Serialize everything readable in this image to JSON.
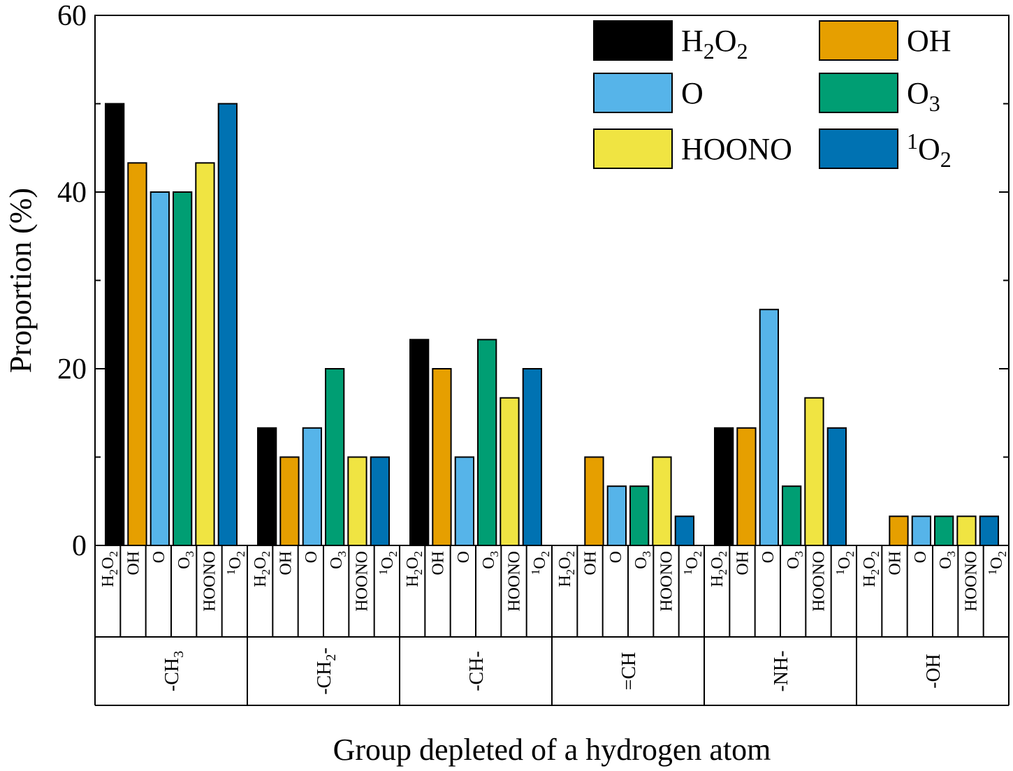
{
  "colors": {
    "H2O2": "#000000",
    "OH": "#e69f00",
    "O": "#56b4e9",
    "O3": "#009e73",
    "HOONO": "#f0e442",
    "1O2": "#0072b2"
  },
  "chart_data": {
    "type": "bar",
    "title": "",
    "xlabel": "Group depleted of a hydrogen atom",
    "ylabel": "Proportion (%)",
    "ylim": [
      0,
      60
    ],
    "yticks": [
      "0",
      "20",
      "40",
      "60"
    ],
    "legend_position": "top-right",
    "categories": [
      "-CH3",
      "-CH2-",
      "-CH-",
      "=CH",
      "-NH-",
      "-OH"
    ],
    "series": [
      {
        "key": "H2O2",
        "name": "H2O2",
        "values": [
          50,
          13.3,
          23.3,
          0,
          13.3,
          0
        ]
      },
      {
        "key": "OH",
        "name": "OH",
        "values": [
          43.3,
          10,
          20,
          10,
          13.3,
          3.3
        ]
      },
      {
        "key": "O",
        "name": "O",
        "values": [
          40,
          13.3,
          10,
          6.7,
          26.7,
          3.3
        ]
      },
      {
        "key": "O3",
        "name": "O3",
        "values": [
          40,
          20,
          23.3,
          6.7,
          6.7,
          3.3
        ]
      },
      {
        "key": "HOONO",
        "name": "HOONO",
        "values": [
          43.3,
          10,
          16.7,
          10,
          16.7,
          3.3
        ]
      },
      {
        "key": "1O2",
        "name": "1O2",
        "values": [
          50,
          10,
          20,
          3.3,
          13.3,
          3.3
        ]
      }
    ]
  }
}
